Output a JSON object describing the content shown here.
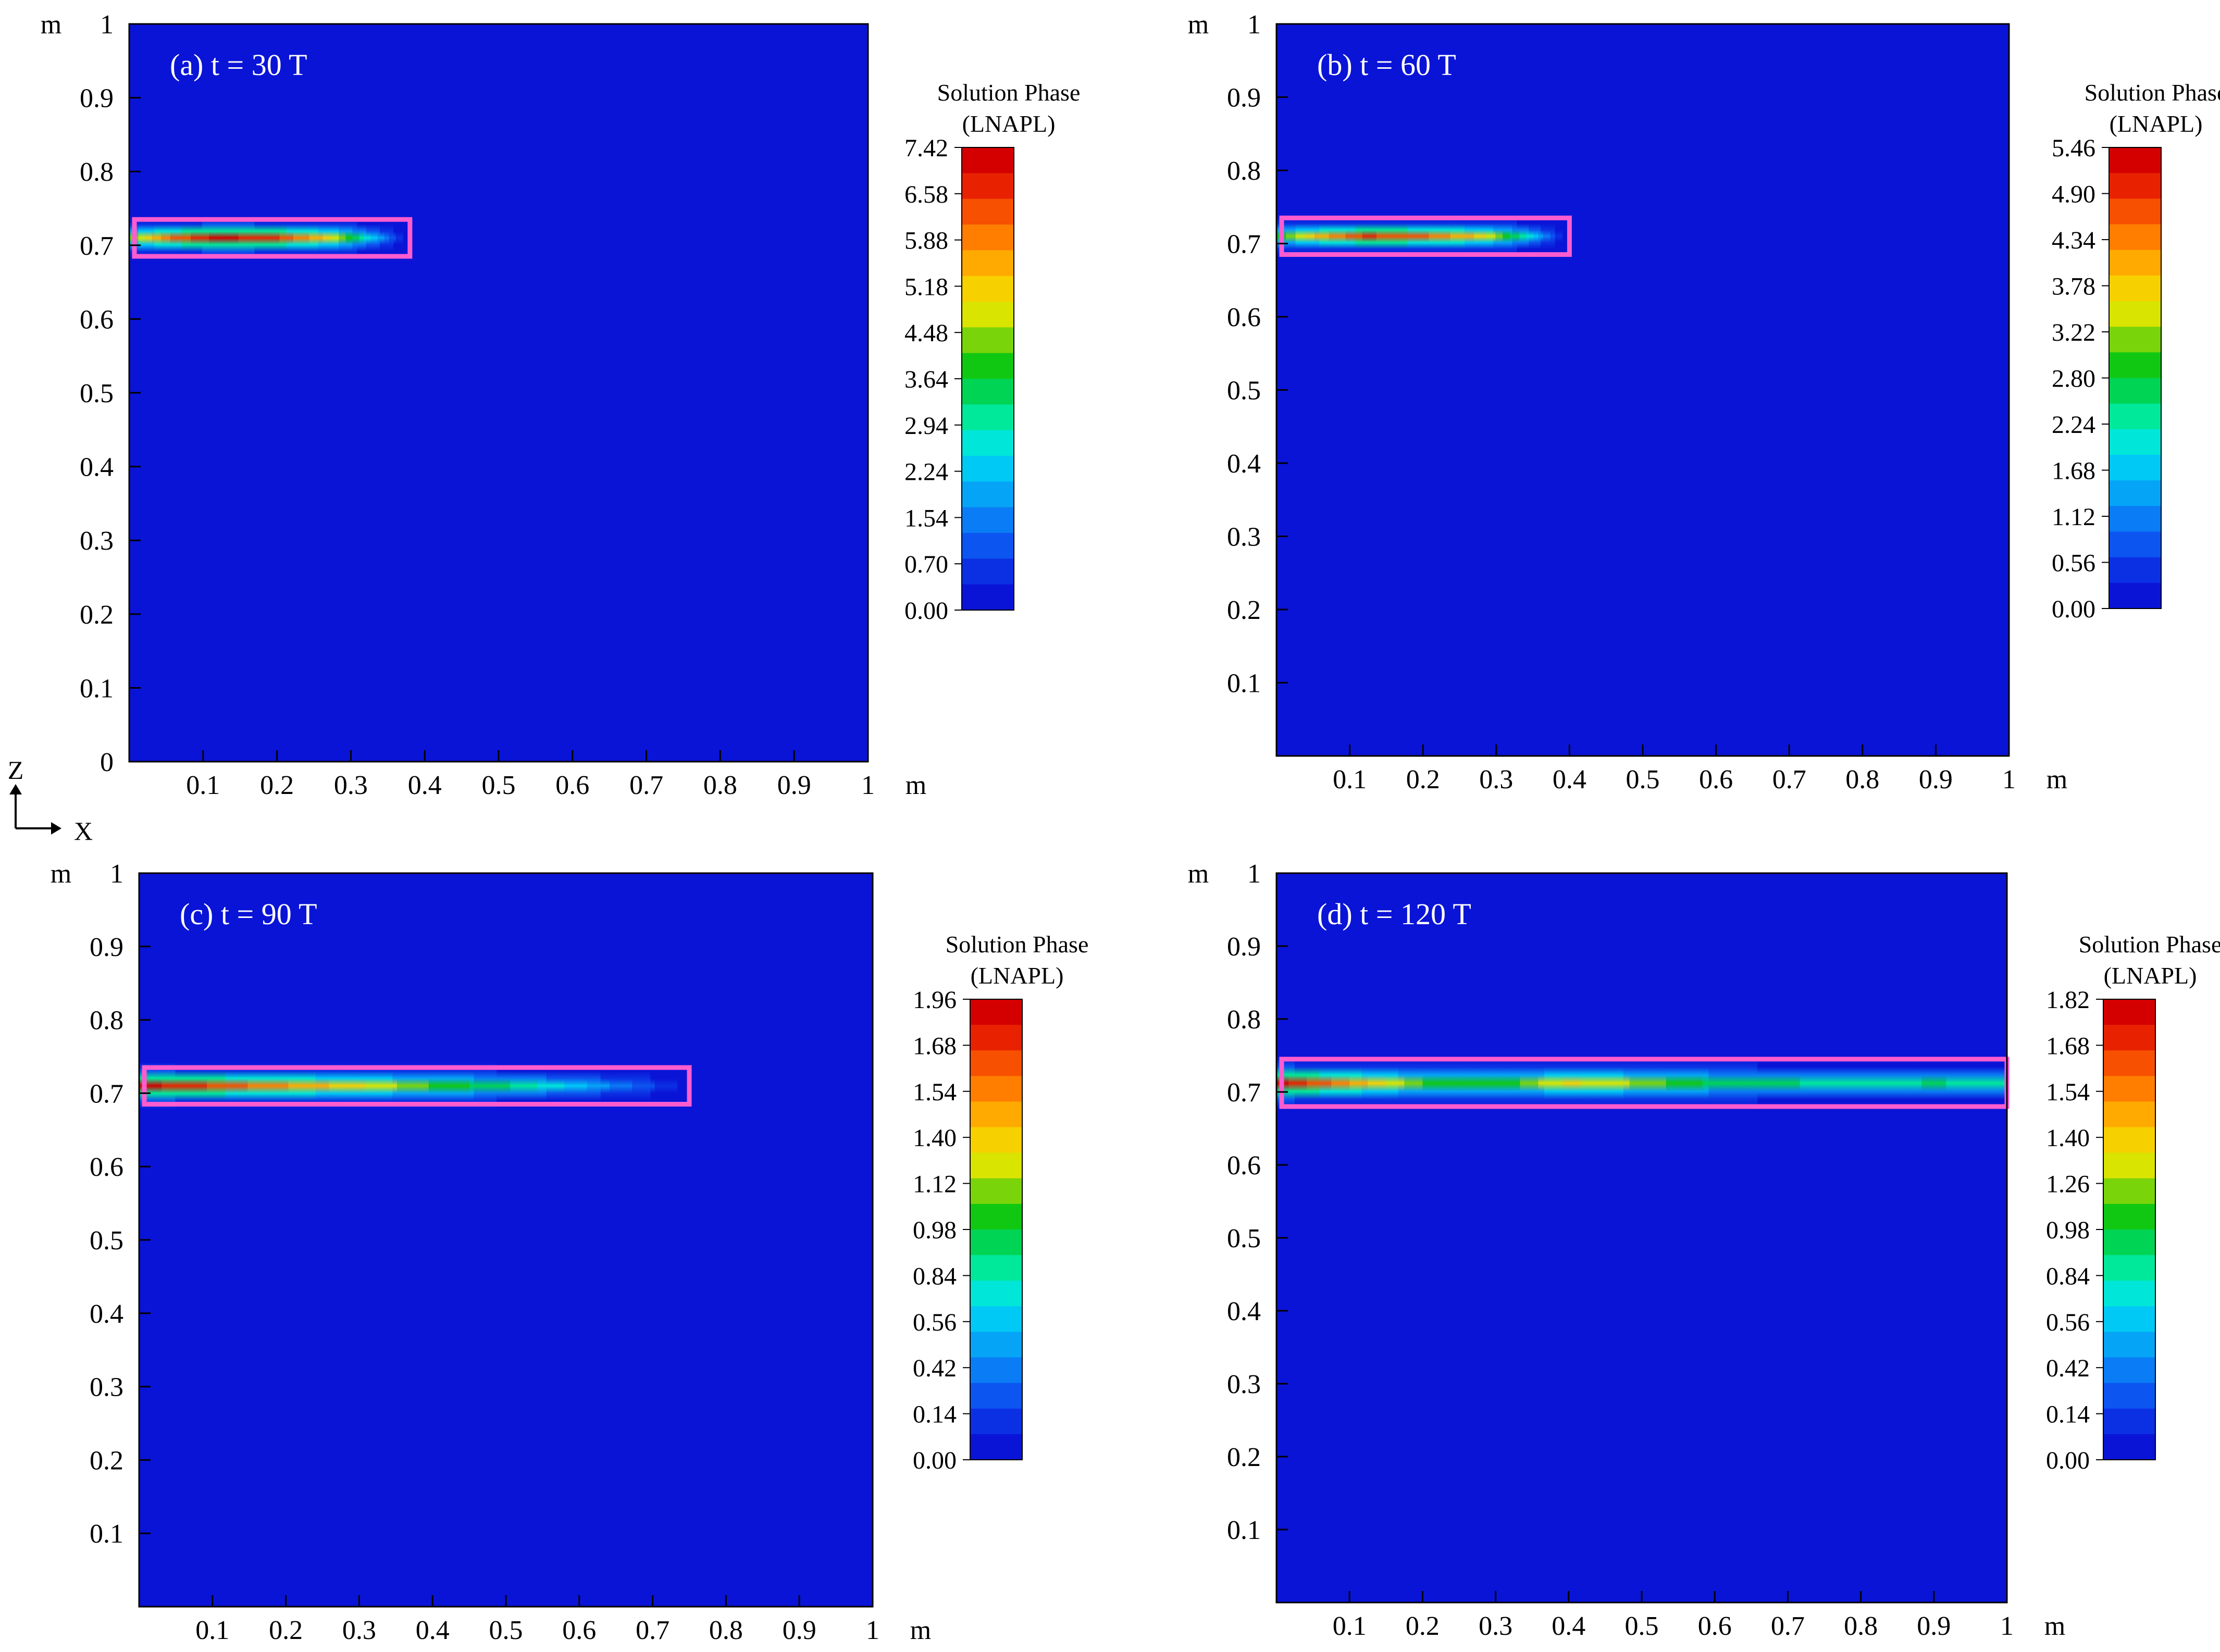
{
  "figure": {
    "coord_axis": {
      "z_label": "Z",
      "x_label": "X"
    },
    "colors": {
      "background": "#0a14d6",
      "box": "#ff5ccf",
      "frame": "#000000"
    }
  },
  "colormap": [
    "#0a14d6",
    "#0b30e4",
    "#0d55f0",
    "#0a7cf5",
    "#06a4f7",
    "#00c9f5",
    "#00e6d8",
    "#00e89a",
    "#00d455",
    "#10c812",
    "#7ad40a",
    "#d9e400",
    "#f7d000",
    "#ffaa00",
    "#ff7e00",
    "#f65000",
    "#e82200",
    "#d40000"
  ],
  "chart_data": [
    {
      "id": "a",
      "type": "heatmap",
      "title": "(a) t = 30 T",
      "xlabel": "m",
      "ylabel": "m",
      "xlim": [
        0,
        1
      ],
      "ylim": [
        0,
        1
      ],
      "xticks": [
        "0.1",
        "0.2",
        "0.3",
        "0.4",
        "0.5",
        "0.6",
        "0.7",
        "0.8",
        "0.9",
        "1"
      ],
      "yticks": [
        "0",
        "0.1",
        "0.2",
        "0.3",
        "0.4",
        "0.5",
        "0.6",
        "0.7",
        "0.8",
        "0.9",
        "1"
      ],
      "colorbar": {
        "title_line1": "Solution Phase",
        "title_line2": "(LNAPL)",
        "ticks": [
          "7.42",
          "6.58",
          "5.88",
          "5.18",
          "4.48",
          "3.64",
          "2.94",
          "2.24",
          "1.54",
          "0.70",
          "0.00"
        ],
        "min": 0.0,
        "max": 7.42
      },
      "box": {
        "x0": 0.0,
        "x1": 0.38,
        "z0": 0.685,
        "z1": 0.735
      },
      "plume": {
        "z_center": 0.71,
        "half_height": 0.018,
        "x_extent": 0.37,
        "profile": [
          [
            0.0,
            0.55
          ],
          [
            0.05,
            0.82
          ],
          [
            0.12,
            0.97
          ],
          [
            0.2,
            0.9
          ],
          [
            0.27,
            0.7
          ],
          [
            0.32,
            0.38
          ],
          [
            0.37,
            0.05
          ]
        ]
      }
    },
    {
      "id": "b",
      "type": "heatmap",
      "title": "(b) t = 60 T",
      "xlabel": "m",
      "ylabel": "m",
      "xlim": [
        0,
        1
      ],
      "ylim": [
        0,
        1
      ],
      "xticks": [
        "0.1",
        "0.2",
        "0.3",
        "0.4",
        "0.5",
        "0.6",
        "0.7",
        "0.8",
        "0.9",
        "1"
      ],
      "yticks": [
        "0.1",
        "0.2",
        "0.3",
        "0.4",
        "0.5",
        "0.6",
        "0.7",
        "0.8",
        "0.9",
        "1"
      ],
      "colorbar": {
        "title_line1": "Solution Phase",
        "title_line2": "(LNAPL)",
        "ticks": [
          "5.46",
          "4.90",
          "4.34",
          "3.78",
          "3.22",
          "2.80",
          "2.24",
          "1.68",
          "1.12",
          "0.56",
          "0.00"
        ],
        "min": 0.0,
        "max": 5.46
      },
      "box": {
        "x0": 0.0,
        "x1": 0.4,
        "z0": 0.685,
        "z1": 0.735
      },
      "plume": {
        "z_center": 0.71,
        "half_height": 0.017,
        "x_extent": 0.39,
        "profile": [
          [
            0.0,
            0.5
          ],
          [
            0.05,
            0.72
          ],
          [
            0.12,
            0.9
          ],
          [
            0.2,
            0.85
          ],
          [
            0.28,
            0.7
          ],
          [
            0.34,
            0.4
          ],
          [
            0.39,
            0.05
          ]
        ]
      }
    },
    {
      "id": "c",
      "type": "heatmap",
      "title": "(c) t = 90 T",
      "xlabel": "m",
      "ylabel": "m",
      "xlim": [
        0,
        1
      ],
      "ylim": [
        0,
        1
      ],
      "xticks": [
        "0.1",
        "0.2",
        "0.3",
        "0.4",
        "0.5",
        "0.6",
        "0.7",
        "0.8",
        "0.9",
        "1"
      ],
      "yticks": [
        "0.1",
        "0.2",
        "0.3",
        "0.4",
        "0.5",
        "0.6",
        "0.7",
        "0.8",
        "0.9",
        "1"
      ],
      "colorbar": {
        "title_line1": "Solution Phase",
        "title_line2": "(LNAPL)",
        "ticks": [
          "1.96",
          "1.68",
          "1.54",
          "1.40",
          "1.12",
          "0.98",
          "0.84",
          "0.56",
          "0.42",
          "0.14",
          "0.00"
        ],
        "min": 0.0,
        "max": 1.96
      },
      "box": {
        "x0": 0.0,
        "x1": 0.75,
        "z0": 0.685,
        "z1": 0.735
      },
      "plume": {
        "z_center": 0.71,
        "half_height": 0.02,
        "x_extent": 0.74,
        "profile": [
          [
            0.0,
            0.97
          ],
          [
            0.1,
            0.88
          ],
          [
            0.2,
            0.78
          ],
          [
            0.3,
            0.68
          ],
          [
            0.4,
            0.55
          ],
          [
            0.5,
            0.45
          ],
          [
            0.6,
            0.3
          ],
          [
            0.7,
            0.12
          ],
          [
            0.74,
            0.05
          ]
        ]
      }
    },
    {
      "id": "d",
      "type": "heatmap",
      "title": "(d) t = 120 T",
      "xlabel": "m",
      "ylabel": "m",
      "xlim": [
        0,
        1
      ],
      "ylim": [
        0,
        1
      ],
      "xticks": [
        "0.1",
        "0.2",
        "0.3",
        "0.4",
        "0.5",
        "0.6",
        "0.7",
        "0.8",
        "0.9",
        "1"
      ],
      "yticks": [
        "0.1",
        "0.2",
        "0.3",
        "0.4",
        "0.5",
        "0.6",
        "0.7",
        "0.8",
        "0.9",
        "1"
      ],
      "colorbar": {
        "title_line1": "Solution Phase",
        "title_line2": "(LNAPL)",
        "ticks": [
          "1.82",
          "1.68",
          "1.54",
          "1.40",
          "1.26",
          "0.98",
          "0.84",
          "0.56",
          "0.42",
          "0.14",
          "0.00"
        ],
        "min": 0.0,
        "max": 1.82
      },
      "box": {
        "x0": 0.0,
        "x1": 1.0,
        "z0": 0.68,
        "z1": 0.745
      },
      "plume": {
        "z_center": 0.712,
        "half_height": 0.022,
        "x_extent": 1.0,
        "profile": [
          [
            0.0,
            0.97
          ],
          [
            0.1,
            0.78
          ],
          [
            0.2,
            0.55
          ],
          [
            0.3,
            0.5
          ],
          [
            0.4,
            0.68
          ],
          [
            0.5,
            0.6
          ],
          [
            0.6,
            0.48
          ],
          [
            0.7,
            0.45
          ],
          [
            0.8,
            0.42
          ],
          [
            0.9,
            0.45
          ],
          [
            1.0,
            0.42
          ]
        ]
      }
    }
  ]
}
